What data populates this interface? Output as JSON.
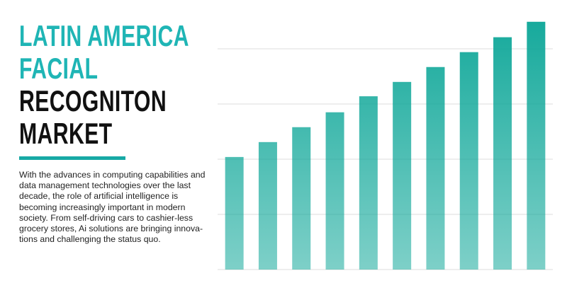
{
  "header": {
    "title_lines": [
      "LATIN AMERICA",
      "FACIAL",
      "RECOGNITON",
      "MARKET"
    ]
  },
  "body": {
    "lines": [
      "With the advances in computing capabilities and",
      "data management technologies over the last",
      "decade, the role of artificial intelligence is",
      "becoming increasingly important in modern",
      "society. From self-driving cars to cashier-less",
      "grocery stores, Ai solutions are bringing innova-",
      "tions and challenging the status quo."
    ]
  },
  "chart_data": {
    "type": "bar",
    "categories": [
      null,
      null,
      null,
      null,
      null,
      null,
      null,
      null,
      null,
      null
    ],
    "values": [
      2.04,
      2.31,
      2.58,
      2.85,
      3.14,
      3.4,
      3.67,
      3.94,
      4.21,
      4.49
    ],
    "color": "#14a99b",
    "ylim": [
      0,
      4.6
    ],
    "yticks": [
      0,
      1,
      2,
      3,
      4
    ],
    "grid": true
  }
}
